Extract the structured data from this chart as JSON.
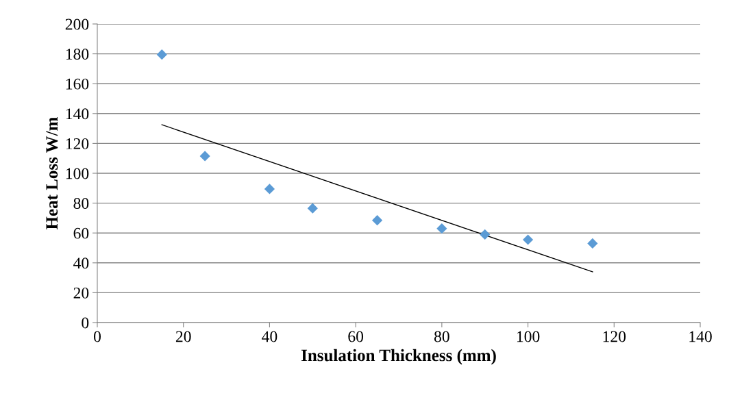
{
  "chart_data": {
    "type": "scatter",
    "xlabel": "Insulation Thickness (mm)",
    "ylabel": "Heat Loss W/m",
    "xlim": [
      0,
      140
    ],
    "xticks": [
      0,
      20,
      40,
      60,
      80,
      100,
      120,
      140
    ],
    "ylim": [
      0,
      200
    ],
    "yticks": [
      0,
      20,
      40,
      60,
      80,
      100,
      120,
      140,
      160,
      180,
      200
    ],
    "grid": "y",
    "legend": false,
    "series": [
      {
        "color": "#5b9bd5",
        "marker": "diamond",
        "x": [
          15,
          25,
          40,
          50,
          65,
          80,
          90,
          100,
          115
        ],
        "values": [
          179.5,
          111.5,
          89.5,
          76.5,
          68.5,
          63,
          59,
          55.5,
          53
        ]
      },
      {
        "type": "line",
        "color": "#000000",
        "marker": "none",
        "x": [
          15,
          115
        ],
        "values": [
          132.5,
          34
        ],
        "line_style": "solid"
      }
    ]
  }
}
